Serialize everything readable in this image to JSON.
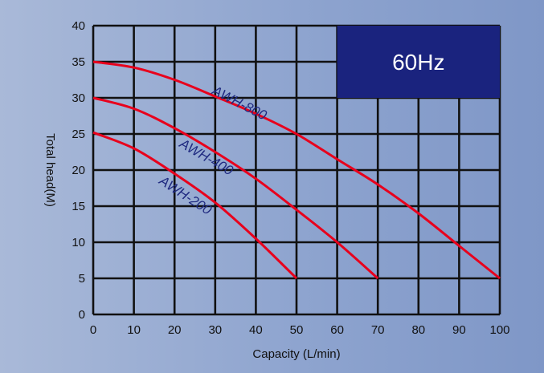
{
  "chart_data": {
    "type": "line",
    "xlabel": "Capacity (L/min)",
    "ylabel": "Total head(M)",
    "xlim": [
      0,
      100
    ],
    "ylim": [
      0,
      40
    ],
    "x_ticks": [
      0,
      10,
      20,
      30,
      40,
      50,
      60,
      70,
      80,
      90,
      100
    ],
    "y_ticks": [
      0,
      5,
      10,
      15,
      20,
      25,
      30,
      35,
      40
    ],
    "grid": true,
    "frequency_badge": "60Hz",
    "colors": {
      "curve": "#e8001c",
      "label": "#1f2a80",
      "badge": "#1a237e",
      "grid": "#111111"
    },
    "series": [
      {
        "name": "AWH-800",
        "x": [
          0,
          10,
          20,
          30,
          40,
          50,
          60,
          70,
          80,
          90,
          100
        ],
        "y": [
          35,
          34.2,
          32.5,
          30.2,
          27.8,
          25,
          21.5,
          18,
          14,
          9.5,
          5
        ]
      },
      {
        "name": "AWH-400",
        "x": [
          0,
          10,
          20,
          30,
          40,
          50,
          60,
          70
        ],
        "y": [
          30,
          28.5,
          25.8,
          22.5,
          18.8,
          14.5,
          10,
          5
        ]
      },
      {
        "name": "AWH-200",
        "x": [
          0,
          10,
          20,
          30,
          40,
          50
        ],
        "y": [
          25.2,
          23,
          19.5,
          15.5,
          10.5,
          5
        ]
      }
    ]
  }
}
